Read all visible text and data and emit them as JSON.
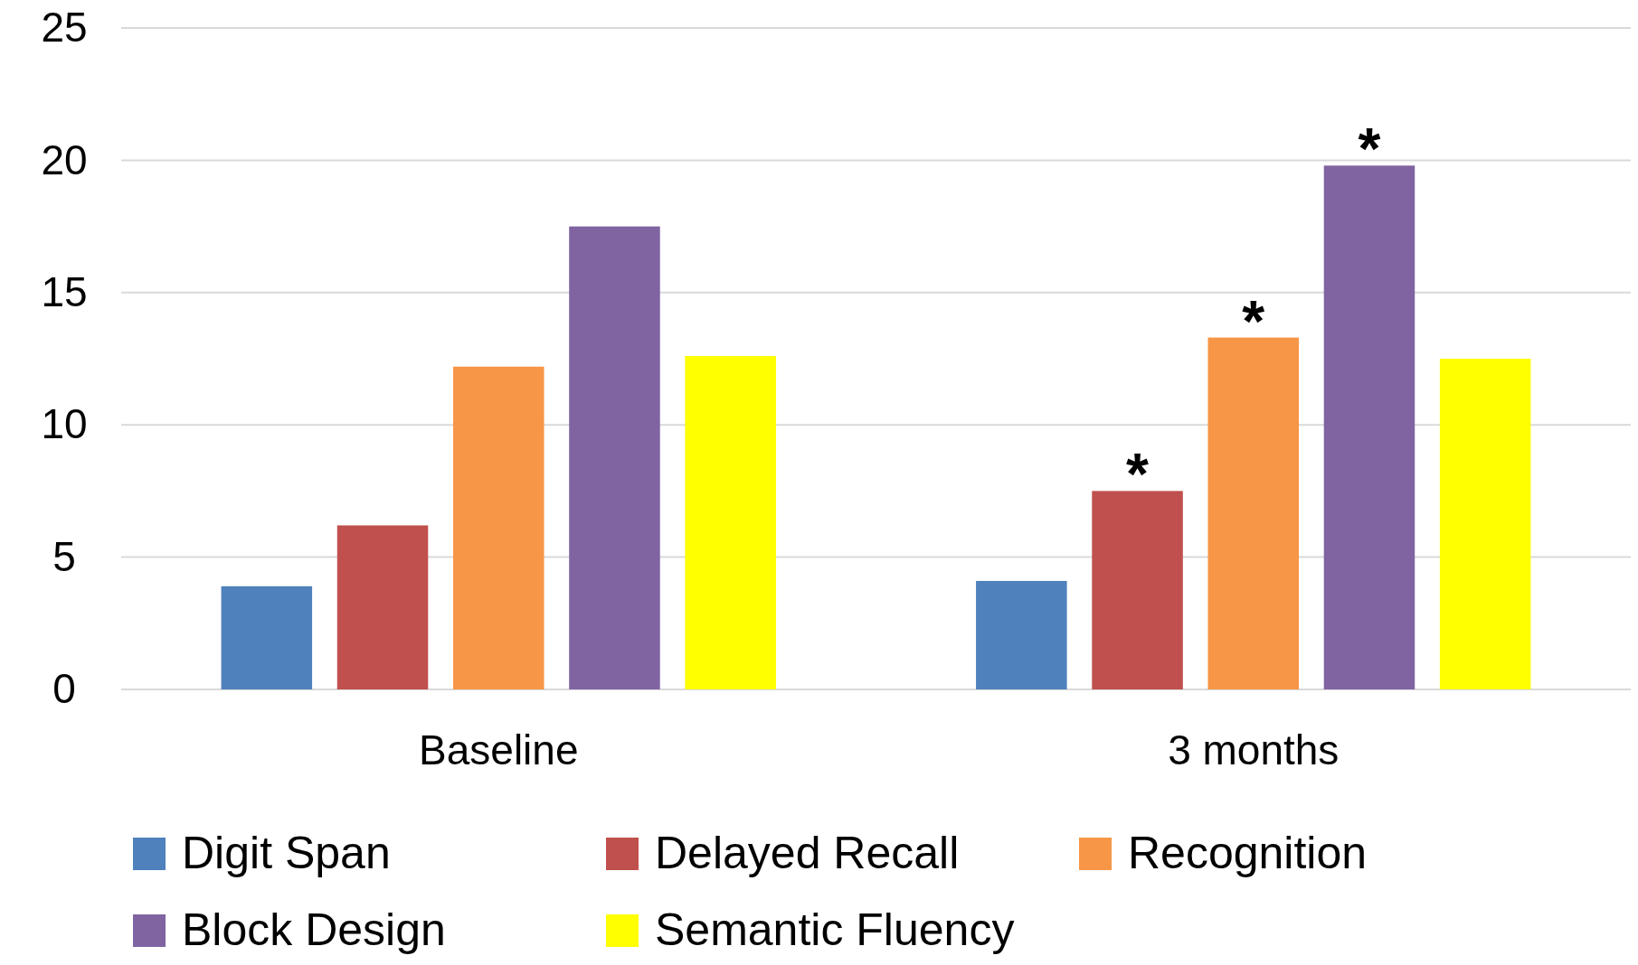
{
  "chart_data": {
    "type": "bar",
    "categories": [
      "Baseline",
      "3 months"
    ],
    "series": [
      {
        "name": "Digit Span",
        "color": "#4f81bd",
        "values": [
          3.9,
          4.1
        ]
      },
      {
        "name": "Delayed Recall",
        "color": "#c0504d",
        "values": [
          6.2,
          7.5
        ],
        "value_labels": [
          null,
          "*"
        ]
      },
      {
        "name": "Recognition",
        "color": "#f79646",
        "values": [
          12.2,
          13.3
        ],
        "value_labels": [
          null,
          "*"
        ]
      },
      {
        "name": "Block Design",
        "color": "#8064a2",
        "values": [
          17.5,
          19.8
        ],
        "value_labels": [
          null,
          "*"
        ]
      },
      {
        "name": "Semantic Fluency",
        "color": "#ffff00",
        "values": [
          12.6,
          12.5
        ]
      }
    ],
    "ylim": [
      0,
      25
    ],
    "yticks": [
      0,
      5,
      10,
      15,
      20,
      25
    ],
    "grid": "y",
    "legend": "bottom"
  }
}
